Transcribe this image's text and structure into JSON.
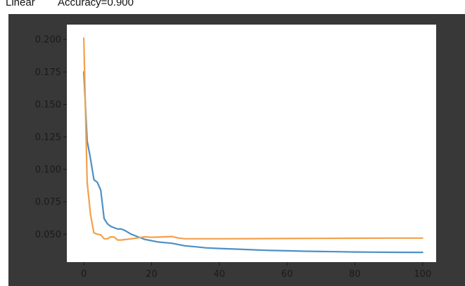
{
  "header": {
    "method": "Linear",
    "accuracy": "Accuracy=0.900"
  },
  "colors": {
    "dark_background": "#383838",
    "plot_area": "#ffffff",
    "series_1": "#4e90c6",
    "series_2": "#f4a04a"
  },
  "chart_data": {
    "type": "line",
    "title": "",
    "xlabel": "",
    "ylabel": "",
    "xlim": [
      -5,
      104
    ],
    "ylim": [
      0.0285,
      0.2115
    ],
    "grid": false,
    "x_ticks": [
      0,
      20,
      40,
      60,
      80,
      100
    ],
    "y_ticks": [
      0.05,
      0.075,
      0.1,
      0.125,
      0.15,
      0.175,
      0.2
    ],
    "x_tick_labels": [
      "0",
      "20",
      "40",
      "60",
      "80",
      "100"
    ],
    "y_tick_labels": [
      "0.050",
      "0.075",
      "0.100",
      "0.125",
      "0.150",
      "0.175",
      "0.200"
    ],
    "series": [
      {
        "color": "#4e90c6",
        "x": [
          0,
          1,
          2,
          3,
          4,
          5,
          6,
          7,
          8,
          9,
          10,
          11,
          12,
          14,
          16,
          18,
          20,
          22,
          24,
          26,
          28,
          30,
          33,
          36,
          40,
          45,
          50,
          55,
          60,
          65,
          70,
          75,
          80,
          85,
          90,
          95,
          100
        ],
        "values": [
          0.175,
          0.122,
          0.108,
          0.092,
          0.09,
          0.084,
          0.062,
          0.058,
          0.056,
          0.055,
          0.054,
          0.054,
          0.053,
          0.05,
          0.048,
          0.046,
          0.045,
          0.044,
          0.0435,
          0.043,
          0.042,
          0.041,
          0.0403,
          0.0395,
          0.039,
          0.0385,
          0.038,
          0.0375,
          0.0372,
          0.0369,
          0.0367,
          0.0365,
          0.0363,
          0.0362,
          0.0361,
          0.036,
          0.036
        ]
      },
      {
        "color": "#f4a04a",
        "x": [
          0,
          1,
          2,
          3,
          4,
          5,
          6,
          7,
          8,
          9,
          10,
          11,
          12,
          14,
          16,
          18,
          20,
          22,
          24,
          26,
          28,
          30,
          35,
          40,
          50,
          60,
          70,
          80,
          90,
          100
        ],
        "values": [
          0.201,
          0.09,
          0.065,
          0.051,
          0.05,
          0.0495,
          0.0465,
          0.0465,
          0.048,
          0.0478,
          0.0455,
          0.0455,
          0.0458,
          0.0465,
          0.0472,
          0.048,
          0.0476,
          0.0478,
          0.048,
          0.0482,
          0.047,
          0.0465,
          0.0465,
          0.0465,
          0.0466,
          0.0467,
          0.0468,
          0.0469,
          0.047,
          0.047
        ]
      }
    ]
  }
}
